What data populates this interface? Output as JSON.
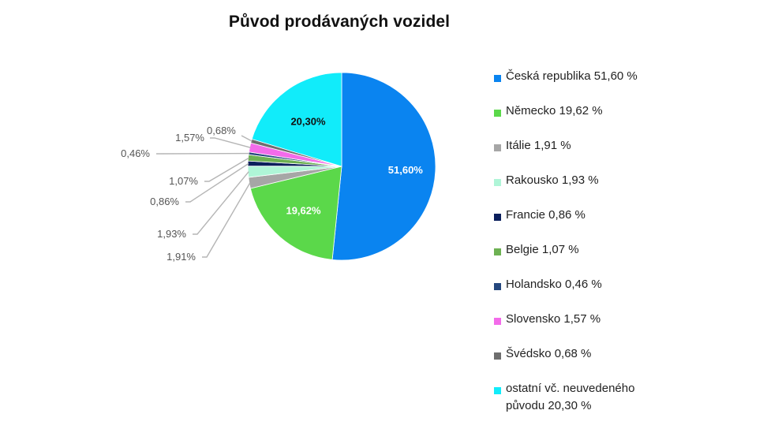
{
  "chart_data": {
    "type": "pie",
    "title": "Původ prodávaných vozidel",
    "categories": [
      "Česká republika",
      "Německo",
      "Itálie",
      "Rakousko",
      "Francie",
      "Belgie",
      "Holandsko",
      "Slovensko",
      "Švédsko",
      "ostatní vč. neuvedeného původu"
    ],
    "values": [
      51.6,
      19.62,
      1.91,
      1.93,
      0.86,
      1.07,
      0.46,
      1.57,
      0.68,
      20.3
    ],
    "data_labels": [
      "51,60%",
      "19,62%",
      "1,91%",
      "1,93%",
      "0,86%",
      "1,07%",
      "0,46%",
      "1,57%",
      "0,68%",
      "20,30%"
    ],
    "legend_entries": [
      "Česká republika 51,60 %",
      "Německo 19,62 %",
      "Itálie 1,91 %",
      "Rakousko 1,93 %",
      "Francie 0,86 %",
      "Belgie 1,07 %",
      "Holandsko 0,46 %",
      "Slovensko 1,57 %",
      "Švédsko 0,68 %",
      "ostatní vč. neuvedeného původu 20,30 %"
    ],
    "colors": [
      "#0A84F0",
      "#5BD84A",
      "#A6A6A6",
      "#AFF5D7",
      "#0B1F5C",
      "#6DB152",
      "#25477E",
      "#F36BEA",
      "#6E6E6E",
      "#11ECFA"
    ],
    "legend_position": "right"
  }
}
